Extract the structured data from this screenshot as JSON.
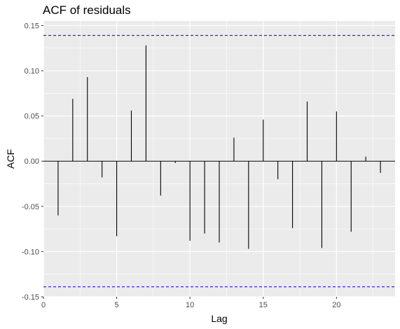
{
  "chart_data": {
    "type": "bar",
    "title": "ACF of residuals",
    "xlabel": "Lag",
    "ylabel": "ACF",
    "xlim": [
      0,
      24
    ],
    "ylim": [
      -0.15,
      0.155
    ],
    "x_ticks": [
      0,
      5,
      10,
      15,
      20
    ],
    "x_tick_labels": [
      "0",
      "5",
      "10",
      "15",
      "20"
    ],
    "y_ticks": [
      -0.15,
      -0.1,
      -0.05,
      0.0,
      0.05,
      0.1,
      0.15
    ],
    "y_tick_labels": [
      "-0.15",
      "-0.10",
      "-0.05",
      "0.00",
      "0.05",
      "0.10",
      "0.15"
    ],
    "lags": [
      1,
      2,
      3,
      4,
      5,
      6,
      7,
      8,
      9,
      10,
      11,
      12,
      13,
      14,
      15,
      16,
      17,
      18,
      19,
      20,
      21,
      22,
      23
    ],
    "values": [
      -0.06,
      0.069,
      0.093,
      -0.018,
      -0.083,
      0.056,
      0.128,
      -0.038,
      -0.002,
      -0.088,
      -0.08,
      -0.09,
      0.026,
      -0.097,
      0.046,
      -0.02,
      -0.074,
      0.066,
      -0.096,
      0.055,
      -0.078,
      0.005,
      -0.013
    ],
    "confidence_bounds": [
      0.139,
      -0.139
    ],
    "colors": {
      "panel_bg": "#ebebeb",
      "grid": "#ffffff",
      "bar": "#000000",
      "zero_line": "#000000",
      "bound": "#0000cd"
    },
    "grid": true
  }
}
